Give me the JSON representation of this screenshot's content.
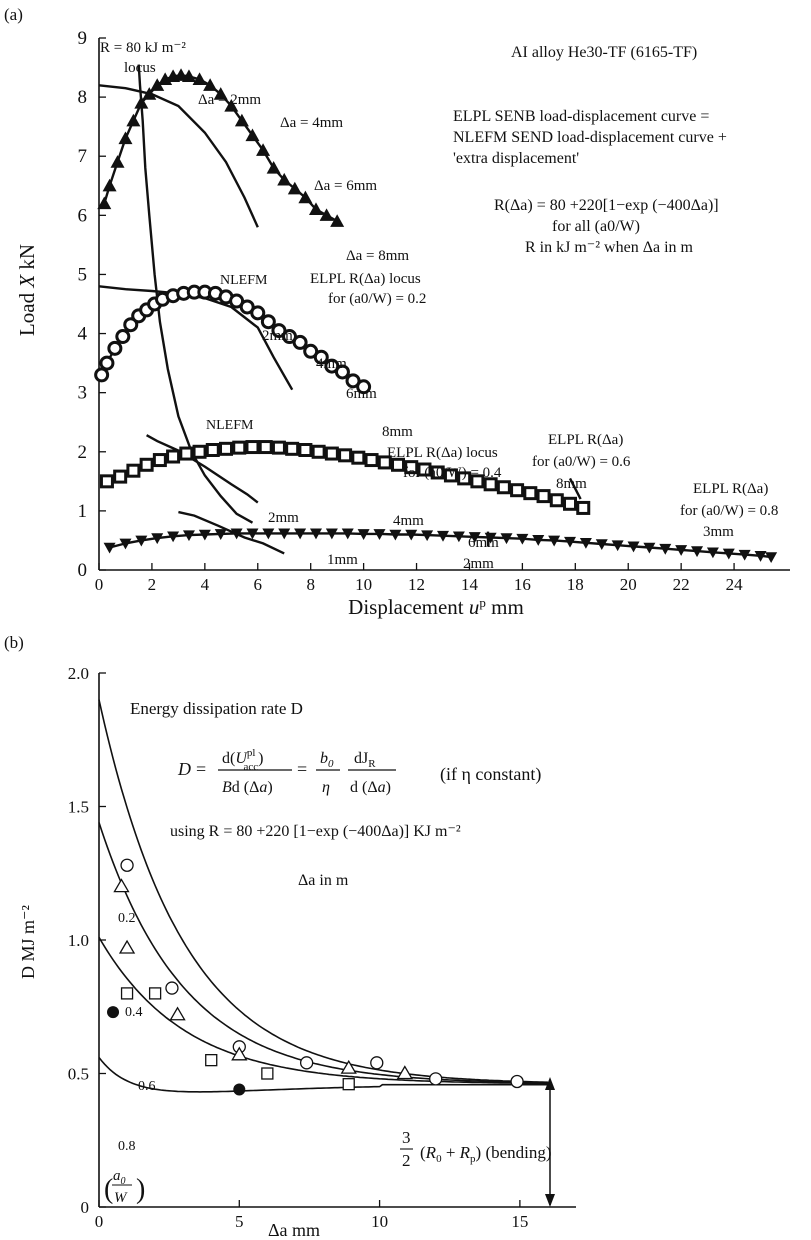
{
  "chart_data": [
    {
      "panel": "(a)",
      "type": "scatter",
      "xlabel": "Displacement u^p mm",
      "ylabel": "Load X kN",
      "xlim": [
        0,
        26
      ],
      "ylim": [
        0,
        9
      ],
      "xticks": [
        0,
        2,
        4,
        6,
        8,
        10,
        12,
        14,
        16,
        18,
        20,
        22,
        24
      ],
      "yticks": [
        0,
        1,
        2,
        3,
        4,
        5,
        6,
        7,
        8,
        9
      ],
      "grid": false,
      "material": "AI alloy He30-TF (6165-TF)",
      "note_lines": [
        "ELPL SENB load-displacement curve =",
        "NLEFM SEND load-displacement curve +",
        "'extra displacement'"
      ],
      "formula_lines": [
        "R(Δa) = 80 +220[1−exp (−400Δa)]",
        "for all (a0/W)",
        "R in kJ m⁻² when Δa in m"
      ],
      "locus_label": "R = 80 kJ m⁻²",
      "locus_label2": "locus",
      "series": [
        {
          "name": "ELPL R(Δa) locus for (a0/W) = 0.2",
          "marker": "triangle-up",
          "x": [
            0.2,
            0.4,
            0.7,
            1.0,
            1.3,
            1.6,
            1.9,
            2.2,
            2.5,
            2.8,
            3.1,
            3.4,
            3.8,
            4.2,
            4.6,
            5.0,
            5.4,
            5.8,
            6.2,
            6.6,
            7.0,
            7.4,
            7.8,
            8.2,
            8.6,
            9.0
          ],
          "y": [
            6.2,
            6.5,
            6.9,
            7.3,
            7.6,
            7.9,
            8.05,
            8.2,
            8.3,
            8.35,
            8.37,
            8.35,
            8.3,
            8.2,
            8.05,
            7.85,
            7.6,
            7.35,
            7.1,
            6.8,
            6.6,
            6.45,
            6.3,
            6.1,
            6.0,
            5.9
          ]
        },
        {
          "name": "ELPL R(Δa) locus for (a0/W) = 0.4",
          "marker": "circle",
          "x": [
            0.1,
            0.3,
            0.6,
            0.9,
            1.2,
            1.5,
            1.8,
            2.1,
            2.4,
            2.8,
            3.2,
            3.6,
            4.0,
            4.4,
            4.8,
            5.2,
            5.6,
            6.0,
            6.4,
            6.8,
            7.2,
            7.6,
            8.0,
            8.4,
            8.8,
            9.2,
            9.6,
            10.0
          ],
          "y": [
            3.3,
            3.5,
            3.75,
            3.95,
            4.15,
            4.3,
            4.4,
            4.5,
            4.58,
            4.64,
            4.68,
            4.7,
            4.7,
            4.68,
            4.62,
            4.55,
            4.45,
            4.35,
            4.2,
            4.05,
            3.95,
            3.85,
            3.7,
            3.6,
            3.45,
            3.35,
            3.2,
            3.1
          ]
        },
        {
          "name": "ELPL R(Δa) for (a0/W) = 0.6",
          "marker": "square",
          "x": [
            0.3,
            0.8,
            1.3,
            1.8,
            2.3,
            2.8,
            3.3,
            3.8,
            4.3,
            4.8,
            5.3,
            5.8,
            6.3,
            6.8,
            7.3,
            7.8,
            8.3,
            8.8,
            9.3,
            9.8,
            10.3,
            10.8,
            11.3,
            11.8,
            12.3,
            12.8,
            13.3,
            13.8,
            14.3,
            14.8,
            15.3,
            15.8,
            16.3,
            16.8,
            17.3,
            17.8,
            18.3
          ],
          "y": [
            1.5,
            1.58,
            1.68,
            1.78,
            1.86,
            1.92,
            1.97,
            2.0,
            2.03,
            2.05,
            2.07,
            2.08,
            2.08,
            2.07,
            2.05,
            2.03,
            2.0,
            1.97,
            1.94,
            1.9,
            1.86,
            1.82,
            1.78,
            1.74,
            1.7,
            1.65,
            1.6,
            1.55,
            1.5,
            1.45,
            1.4,
            1.35,
            1.3,
            1.25,
            1.18,
            1.12,
            1.05
          ]
        },
        {
          "name": "ELPL R(Δa) for (a0/W) = 0.8",
          "marker": "triangle-down",
          "x": [
            0.4,
            1.0,
            1.6,
            2.2,
            2.8,
            3.4,
            4.0,
            4.6,
            5.2,
            5.8,
            6.4,
            7.0,
            7.6,
            8.2,
            8.8,
            9.4,
            10.0,
            10.6,
            11.2,
            11.8,
            12.4,
            13.0,
            13.6,
            14.2,
            14.8,
            15.4,
            16.0,
            16.6,
            17.2,
            17.8,
            18.4,
            19.0,
            19.6,
            20.2,
            20.8,
            21.4,
            22.0,
            22.6,
            23.2,
            23.8,
            24.4,
            25.0,
            25.4
          ],
          "y": [
            0.38,
            0.45,
            0.5,
            0.54,
            0.57,
            0.59,
            0.6,
            0.61,
            0.62,
            0.62,
            0.62,
            0.62,
            0.62,
            0.62,
            0.62,
            0.62,
            0.61,
            0.61,
            0.6,
            0.6,
            0.59,
            0.58,
            0.57,
            0.56,
            0.55,
            0.54,
            0.53,
            0.51,
            0.5,
            0.48,
            0.46,
            0.44,
            0.42,
            0.4,
            0.38,
            0.36,
            0.34,
            0.32,
            0.3,
            0.28,
            0.26,
            0.24,
            0.22
          ]
        }
      ],
      "nlefm_label": "NLEFM",
      "annotations": {
        "a02": [
          "Δa = 2mm",
          "Δa = 4mm",
          "Δa = 6mm",
          "Δa = 8mm"
        ],
        "a04": [
          "2mm",
          "4mm",
          "6mm",
          "8mm"
        ],
        "a06": [
          "2mm",
          "4mm",
          "6mm",
          "8mm"
        ],
        "a08": [
          "1mm",
          "2mm",
          "3mm"
        ],
        "labels": [
          "ELPL R(Δa) locus",
          "for (a0/W) = 0.2",
          "ELPL R(Δa) locus",
          "for (a0/W) = 0.4",
          "ELPL R(Δa)",
          "for (a0/W) = 0.6",
          "ELPL R(Δa)",
          "for (a0/W) = 0.8"
        ]
      }
    },
    {
      "panel": "(b)",
      "type": "line",
      "xlabel": "Δa mm",
      "ylabel": "D MJ m⁻²",
      "xlim": [
        0,
        17
      ],
      "ylim": [
        0,
        2.0
      ],
      "xticks": [
        0,
        5,
        10,
        15
      ],
      "yticks": [
        "0",
        "0.5",
        "1.0",
        "1.5",
        "2.0"
      ],
      "ytick_values": [
        0,
        0.5,
        1.0,
        1.5,
        2.0
      ],
      "grid": false,
      "title": "Energy dissipation rate D",
      "equation": "D = d(U^pl_acc) / B d(Δa) = (b0/η) dJR/d(Δa)   (if η constant)",
      "eq_if": "(if η constant)",
      "using": "using R = 80 +220 [1−exp (−400Δa)] KJ m⁻²",
      "units_note": "Δa in m",
      "legend_label": "(a0/W)",
      "bending_label": "3/2 (R0 + Rp) (bending)",
      "asymptote": 0.46,
      "series": [
        {
          "name": "0.2",
          "start": 1.9,
          "k": 0.33
        },
        {
          "name": "0.4",
          "start": 1.44,
          "k": 0.33
        },
        {
          "name": "0.6",
          "start": 1.01,
          "k": 0.33
        },
        {
          "name": "0.8",
          "start": 0.56,
          "k": 0.33,
          "dip": true
        }
      ],
      "points": {
        "circles": [
          [
            1.0,
            1.28
          ],
          [
            2.6,
            0.82
          ],
          [
            5.0,
            0.6
          ],
          [
            7.4,
            0.54
          ],
          [
            9.9,
            0.54
          ],
          [
            12.0,
            0.48
          ],
          [
            14.9,
            0.47
          ]
        ],
        "triangles": [
          [
            0.8,
            1.2
          ],
          [
            1.0,
            0.97
          ],
          [
            2.8,
            0.72
          ],
          [
            5.0,
            0.57
          ],
          [
            8.9,
            0.52
          ],
          [
            10.9,
            0.5
          ]
        ],
        "squares": [
          [
            1.0,
            0.8
          ],
          [
            2.0,
            0.8
          ],
          [
            4.0,
            0.55
          ],
          [
            6.0,
            0.5
          ],
          [
            8.9,
            0.46
          ]
        ],
        "filled": [
          [
            0.5,
            0.73
          ],
          [
            5.0,
            0.44
          ]
        ]
      }
    }
  ],
  "panel_labels": {
    "a": "(a)",
    "b": "(b)"
  }
}
